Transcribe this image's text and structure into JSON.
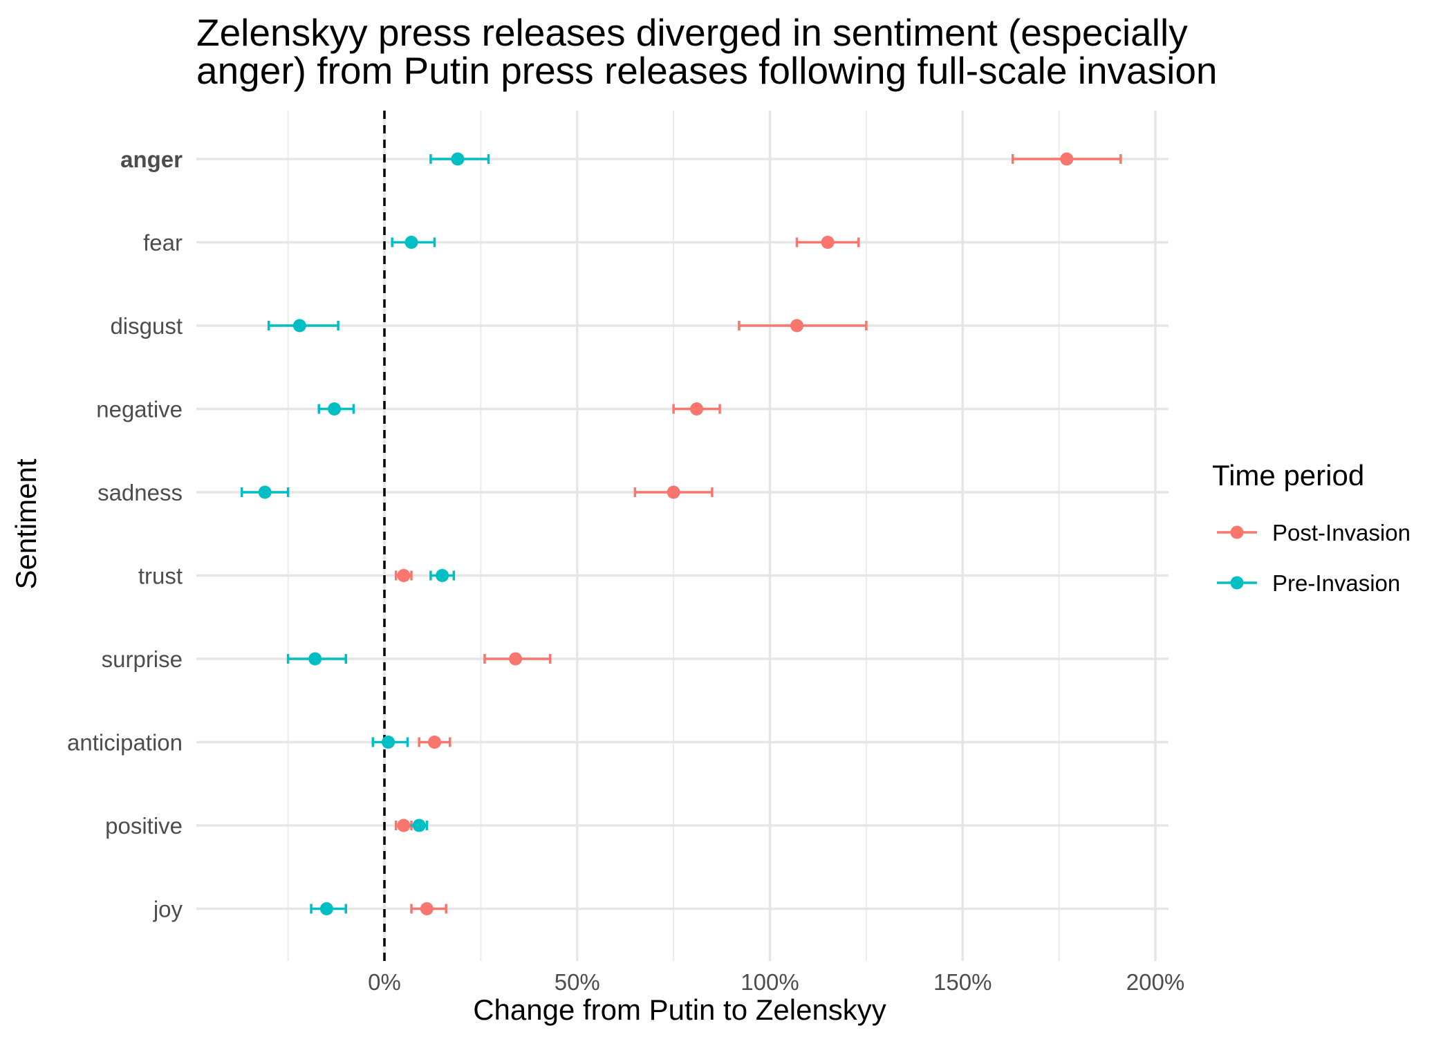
{
  "chart_data": {
    "type": "scatter",
    "subtype": "dot-and-whisker",
    "title": "Zelenskyy press releases diverged in sentiment (especially\nanger) from Putin press releases following full-scale invasion",
    "xlabel": "Change from Putin to Zelenskyy",
    "ylabel": "Sentiment",
    "xlim": [
      -50,
      205
    ],
    "x_ticks": [
      0,
      50,
      100,
      150,
      200
    ],
    "x_tick_labels": [
      "0%",
      "50%",
      "100%",
      "150%",
      "200%"
    ],
    "x_minor_ticks": [
      -25,
      25,
      75,
      125,
      175
    ],
    "reference_line": 0,
    "grid": true,
    "categories": [
      "anger",
      "fear",
      "disgust",
      "negative",
      "sadness",
      "trust",
      "surprise",
      "anticipation",
      "positive",
      "joy"
    ],
    "bold_category": "anger",
    "legend": {
      "title": "Time period",
      "position": "right"
    },
    "series": [
      {
        "name": "Post-Invasion",
        "color": "#F8766D",
        "points": [
          {
            "category": "anger",
            "value": 177,
            "low": 163,
            "high": 191
          },
          {
            "category": "fear",
            "value": 115,
            "low": 107,
            "high": 123
          },
          {
            "category": "disgust",
            "value": 107,
            "low": 92,
            "high": 125
          },
          {
            "category": "negative",
            "value": 81,
            "low": 75,
            "high": 87
          },
          {
            "category": "sadness",
            "value": 75,
            "low": 65,
            "high": 85
          },
          {
            "category": "trust",
            "value": 5,
            "low": 3,
            "high": 7
          },
          {
            "category": "surprise",
            "value": 34,
            "low": 26,
            "high": 43
          },
          {
            "category": "anticipation",
            "value": 13,
            "low": 9,
            "high": 17
          },
          {
            "category": "positive",
            "value": 5,
            "low": 3,
            "high": 7
          },
          {
            "category": "joy",
            "value": 11,
            "low": 7,
            "high": 16
          }
        ]
      },
      {
        "name": "Pre-Invasion",
        "color": "#00BFC4",
        "points": [
          {
            "category": "anger",
            "value": 19,
            "low": 12,
            "high": 27
          },
          {
            "category": "fear",
            "value": 7,
            "low": 2,
            "high": 13
          },
          {
            "category": "disgust",
            "value": -22,
            "low": -30,
            "high": -12
          },
          {
            "category": "negative",
            "value": -13,
            "low": -17,
            "high": -8
          },
          {
            "category": "sadness",
            "value": -31,
            "low": -37,
            "high": -25
          },
          {
            "category": "trust",
            "value": 15,
            "low": 12,
            "high": 18
          },
          {
            "category": "surprise",
            "value": -18,
            "low": -25,
            "high": -10
          },
          {
            "category": "anticipation",
            "value": 1,
            "low": -3,
            "high": 6
          },
          {
            "category": "positive",
            "value": 9,
            "low": 6,
            "high": 11
          },
          {
            "category": "joy",
            "value": -15,
            "low": -19,
            "high": -10
          }
        ]
      }
    ]
  }
}
